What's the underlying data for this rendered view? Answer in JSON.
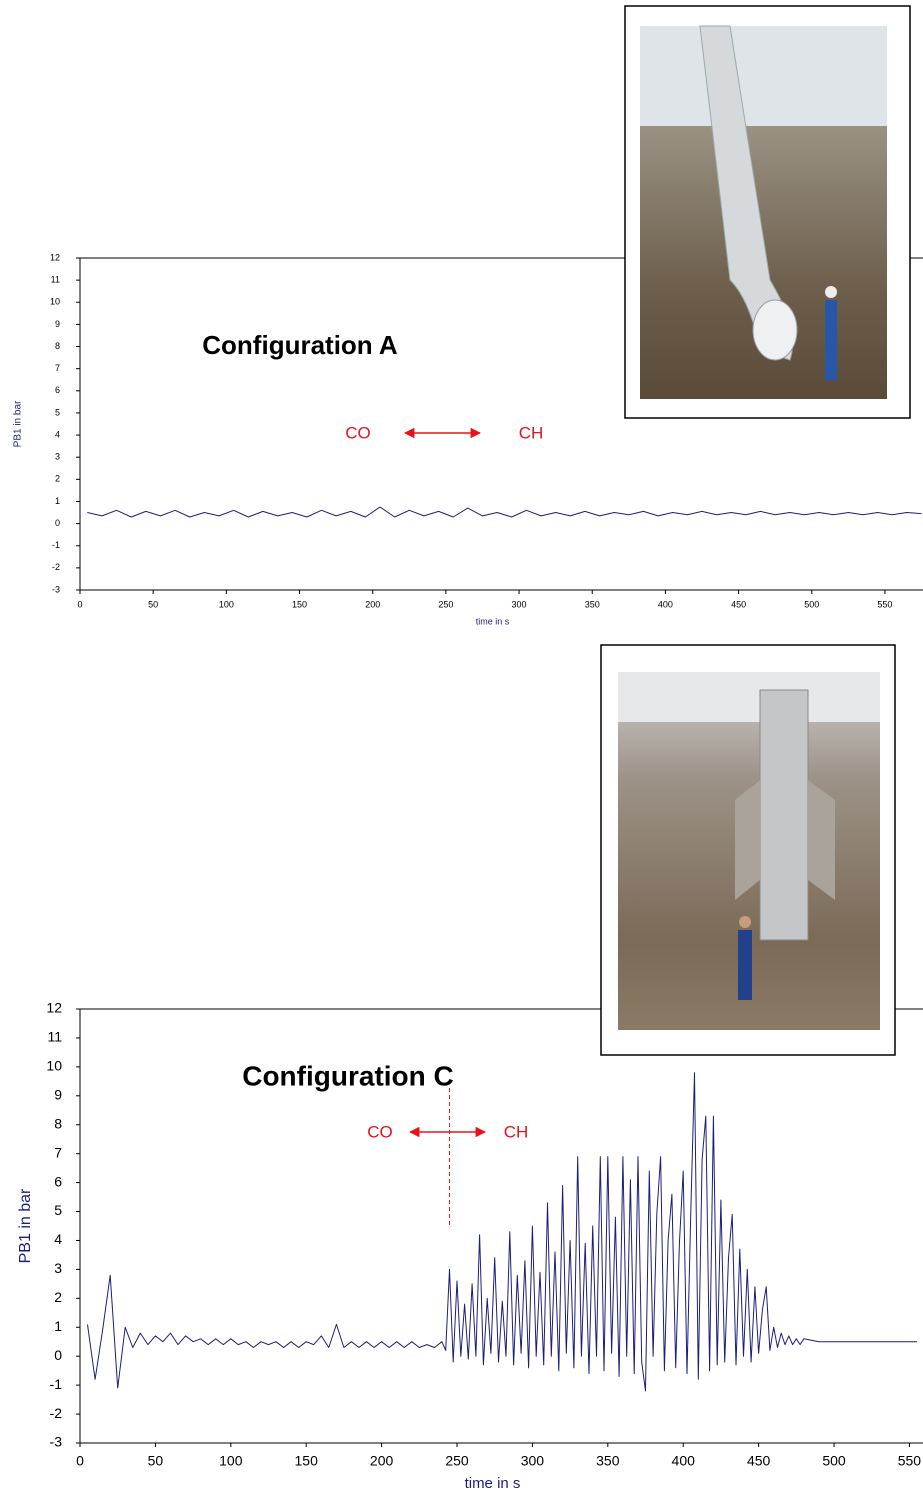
{
  "chart_data": [
    {
      "type": "line",
      "title": "Configuration A",
      "annotations": [
        "CO",
        "CH"
      ],
      "y_label": "PB1 in bar",
      "x_label": "time in s",
      "xlim": [
        0,
        576
      ],
      "xticks": [
        0,
        50,
        100,
        150,
        200,
        250,
        300,
        350,
        400,
        450,
        500,
        550
      ],
      "ylim": [
        -3,
        12
      ],
      "yticks": [
        -3,
        -2,
        -1,
        0,
        1,
        2,
        3,
        4,
        5,
        6,
        7,
        8,
        9,
        10,
        11,
        12
      ],
      "x": [
        5,
        15,
        25,
        35,
        45,
        55,
        65,
        75,
        85,
        95,
        105,
        115,
        125,
        135,
        145,
        155,
        165,
        175,
        185,
        195,
        205,
        215,
        225,
        235,
        245,
        255,
        265,
        275,
        285,
        295,
        305,
        315,
        325,
        335,
        345,
        355,
        365,
        375,
        385,
        395,
        405,
        415,
        425,
        435,
        445,
        455,
        465,
        475,
        485,
        495,
        505,
        515,
        525,
        535,
        545,
        555,
        565,
        575
      ],
      "series": [
        {
          "color": "#1c1f7a",
          "values": [
            0.5,
            0.35,
            0.6,
            0.3,
            0.55,
            0.35,
            0.6,
            0.3,
            0.5,
            0.35,
            0.6,
            0.3,
            0.55,
            0.35,
            0.5,
            0.3,
            0.6,
            0.35,
            0.55,
            0.3,
            0.75,
            0.3,
            0.6,
            0.35,
            0.55,
            0.3,
            0.7,
            0.35,
            0.5,
            0.3,
            0.6,
            0.35,
            0.5,
            0.35,
            0.55,
            0.35,
            0.5,
            0.4,
            0.55,
            0.35,
            0.5,
            0.4,
            0.55,
            0.4,
            0.5,
            0.4,
            0.55,
            0.4,
            0.5,
            0.4,
            0.5,
            0.4,
            0.5,
            0.4,
            0.5,
            0.4,
            0.5,
            0.45
          ]
        }
      ]
    },
    {
      "type": "line",
      "title": "Configuration C",
      "annotations": [
        "CO",
        "CH"
      ],
      "y_label": "PB1 in bar",
      "x_label": "time in s",
      "marker_x": 245,
      "xlim": [
        0,
        559
      ],
      "xticks": [
        0,
        50,
        100,
        150,
        200,
        250,
        300,
        350,
        400,
        450,
        500,
        550
      ],
      "ylim": [
        -3,
        12
      ],
      "yticks": [
        -3,
        -2,
        -1,
        0,
        1,
        2,
        3,
        4,
        5,
        6,
        7,
        8,
        9,
        10,
        11,
        12
      ],
      "x": [
        5,
        10,
        15,
        20,
        25,
        30,
        35,
        40,
        45,
        50,
        55,
        60,
        65,
        70,
        75,
        80,
        85,
        90,
        95,
        100,
        105,
        110,
        115,
        120,
        125,
        130,
        135,
        140,
        145,
        150,
        155,
        160,
        165,
        170,
        175,
        180,
        185,
        190,
        195,
        200,
        205,
        210,
        215,
        220,
        225,
        230,
        235,
        240,
        242.5,
        245,
        247.5,
        250,
        252.5,
        255,
        257.5,
        260,
        262.5,
        265,
        267.5,
        270,
        272.5,
        275,
        277.5,
        280,
        282.5,
        285,
        287.5,
        290,
        292.5,
        295,
        297.5,
        300,
        302.5,
        305,
        307.5,
        310,
        312.5,
        315,
        317.5,
        320,
        322.5,
        325,
        327.5,
        330,
        332.5,
        335,
        337.5,
        340,
        342.5,
        345,
        347.5,
        350,
        352.5,
        355,
        357.5,
        360,
        362.5,
        365,
        367.5,
        370,
        372.5,
        375,
        377.5,
        380,
        382.5,
        385,
        387.5,
        390,
        392.5,
        395,
        397.5,
        400,
        402.5,
        405,
        407.5,
        410,
        412.5,
        415,
        417.5,
        420,
        422.5,
        425,
        427.5,
        430,
        432.5,
        435,
        437.5,
        440,
        442.5,
        445,
        447.5,
        450,
        452.5,
        455,
        457.5,
        460,
        462.5,
        465,
        467.5,
        470,
        472.5,
        475,
        477.5,
        480,
        490,
        500,
        510,
        520,
        530,
        540,
        550,
        555
      ],
      "series": [
        {
          "color": "#1c1f7a",
          "values": [
            1.1,
            -0.8,
            0.9,
            2.8,
            -1.1,
            1.0,
            0.3,
            0.8,
            0.4,
            0.7,
            0.5,
            0.8,
            0.4,
            0.7,
            0.5,
            0.6,
            0.4,
            0.6,
            0.4,
            0.6,
            0.4,
            0.5,
            0.3,
            0.5,
            0.4,
            0.5,
            0.3,
            0.5,
            0.3,
            0.5,
            0.4,
            0.7,
            0.3,
            1.1,
            0.3,
            0.5,
            0.3,
            0.5,
            0.3,
            0.5,
            0.3,
            0.5,
            0.3,
            0.5,
            0.3,
            0.4,
            0.3,
            0.5,
            0.2,
            3.0,
            -0.2,
            2.6,
            0.0,
            1.8,
            -0.1,
            2.5,
            0.0,
            4.2,
            -0.3,
            2.0,
            0.1,
            3.4,
            -0.2,
            1.9,
            0.0,
            4.3,
            -0.3,
            2.8,
            0.1,
            3.3,
            -0.4,
            4.5,
            0.0,
            2.9,
            -0.3,
            5.3,
            0.0,
            3.6,
            -0.5,
            5.9,
            0.1,
            4.0,
            -0.4,
            6.9,
            0.0,
            3.9,
            -0.6,
            4.5,
            0.0,
            6.9,
            -0.5,
            6.9,
            0.1,
            4.8,
            -0.7,
            6.9,
            0.0,
            6.1,
            -0.6,
            6.9,
            -0.2,
            -1.2,
            6.4,
            0.0,
            4.9,
            6.9,
            -0.5,
            4.0,
            5.6,
            -0.4,
            3.9,
            6.4,
            -0.6,
            5.0,
            9.8,
            -0.8,
            6.8,
            8.3,
            -0.5,
            8.3,
            -0.3,
            5.4,
            -0.2,
            3.4,
            4.9,
            -0.3,
            3.7,
            0.0,
            3.0,
            -0.2,
            2.4,
            0.1,
            1.6,
            2.4,
            0.2,
            1.0,
            0.3,
            0.8,
            0.4,
            0.7,
            0.4,
            0.6,
            0.4,
            0.6,
            0.5,
            0.5,
            0.5,
            0.5,
            0.5,
            0.5,
            0.5,
            0.5
          ]
        }
      ]
    }
  ]
}
